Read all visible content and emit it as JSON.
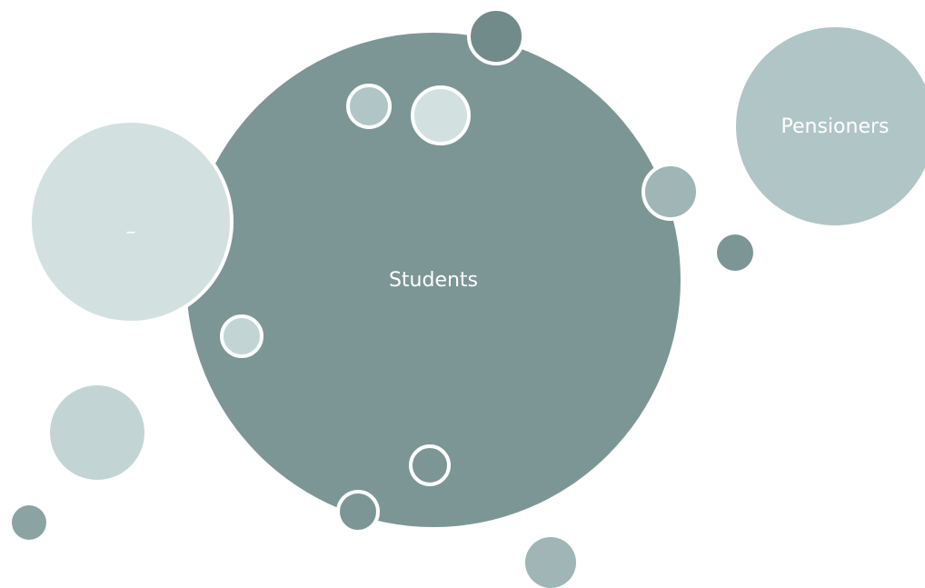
{
  "colors": {
    "main": "#7c9695",
    "light": "#d3e0e0",
    "pale": "#b0c5c5",
    "mid": "#9fb5b6",
    "dark": "#718b8a",
    "soft": "#c3d4d4",
    "outline": "#ffffff"
  },
  "bubbles": {
    "main_label": "Students",
    "left_label": "–",
    "right_label": "Pensioners"
  }
}
